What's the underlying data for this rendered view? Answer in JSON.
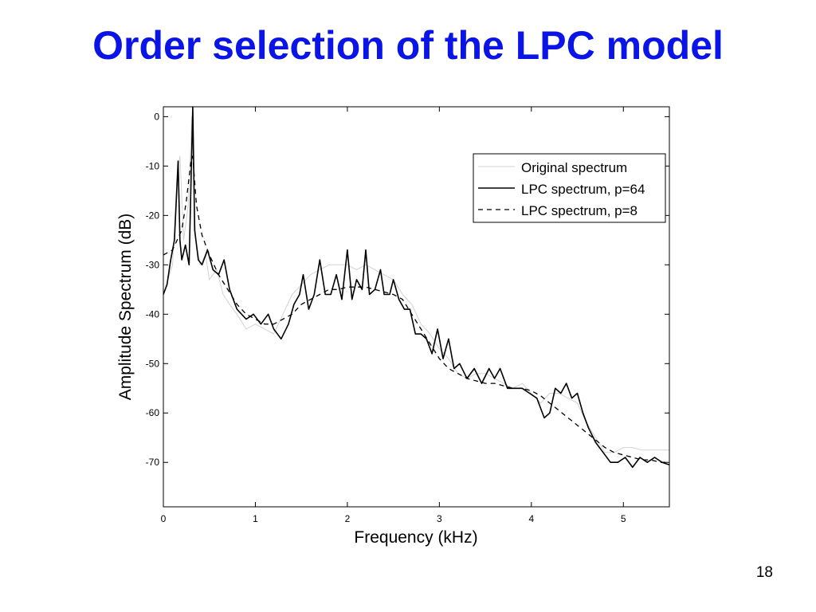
{
  "slide": {
    "title": "Order selection of the LPC model",
    "page_number": "18"
  },
  "chart_data": {
    "type": "line",
    "title": "",
    "xlabel": "Frequency (kHz)",
    "ylabel": "Amplitude Spectrum (dB)",
    "xlim": [
      0,
      5.5
    ],
    "ylim": [
      -79,
      2
    ],
    "xticks": [
      0,
      1,
      2,
      3,
      4,
      5
    ],
    "yticks": [
      0,
      -10,
      -20,
      -30,
      -40,
      -50,
      -60,
      -70
    ],
    "grid": false,
    "legend_position": "top-right",
    "series": [
      {
        "name": "Original spectrum",
        "color": "#d2d2d2",
        "style": "solid",
        "x": [
          0,
          0.05,
          0.1,
          0.15,
          0.18,
          0.22,
          0.27,
          0.31,
          0.35,
          0.4,
          0.46,
          0.5,
          0.58,
          0.65,
          0.72,
          0.8,
          0.9,
          1.0,
          1.1,
          1.2,
          1.3,
          1.4,
          1.5,
          1.6,
          1.7,
          1.8,
          1.9,
          2.0,
          2.1,
          2.2,
          2.3,
          2.4,
          2.5,
          2.6,
          2.7,
          2.8,
          2.9,
          3.0,
          3.1,
          3.2,
          3.3,
          3.4,
          3.5,
          3.6,
          3.7,
          3.8,
          3.9,
          4.0,
          4.1,
          4.2,
          4.3,
          4.4,
          4.5,
          4.6,
          4.7,
          4.8,
          4.9,
          5.0,
          5.1,
          5.2,
          5.3,
          5.4,
          5.5
        ],
        "y": [
          -36,
          -33,
          -30,
          -12,
          -8,
          -25,
          -18,
          0,
          -25,
          -30,
          -28,
          -33,
          -31,
          -36,
          -38,
          -40,
          -43,
          -42,
          -43,
          -44,
          -40,
          -36,
          -34,
          -32,
          -31,
          -30,
          -30,
          -30,
          -31,
          -30,
          -31,
          -32,
          -33,
          -36,
          -38,
          -42,
          -44,
          -47,
          -49,
          -52,
          -53,
          -52,
          -52,
          -53,
          -54,
          -55,
          -54,
          -56,
          -58,
          -56,
          -56,
          -57,
          -58,
          -62,
          -65,
          -68,
          -68,
          -67,
          -67,
          -67.5,
          -67.5,
          -67.5,
          -67.5
        ]
      },
      {
        "name": "LPC spectrum, p=64",
        "color": "#000000",
        "style": "solid",
        "x": [
          0,
          0.04,
          0.08,
          0.12,
          0.16,
          0.18,
          0.2,
          0.24,
          0.28,
          0.32,
          0.34,
          0.38,
          0.42,
          0.48,
          0.54,
          0.6,
          0.66,
          0.72,
          0.8,
          0.9,
          0.98,
          1.06,
          1.14,
          1.2,
          1.28,
          1.36,
          1.42,
          1.48,
          1.52,
          1.58,
          1.64,
          1.7,
          1.76,
          1.82,
          1.88,
          1.94,
          2.0,
          2.05,
          2.1,
          2.16,
          2.2,
          2.24,
          2.3,
          2.36,
          2.4,
          2.46,
          2.5,
          2.56,
          2.62,
          2.68,
          2.74,
          2.8,
          2.86,
          2.92,
          2.98,
          3.04,
          3.1,
          3.16,
          3.22,
          3.3,
          3.38,
          3.46,
          3.54,
          3.6,
          3.66,
          3.74,
          3.82,
          3.9,
          3.98,
          4.06,
          4.14,
          4.2,
          4.26,
          4.32,
          4.38,
          4.44,
          4.5,
          4.56,
          4.62,
          4.7,
          4.78,
          4.86,
          4.94,
          5.02,
          5.1,
          5.18,
          5.26,
          5.34,
          5.42,
          5.5
        ],
        "y": [
          -36,
          -34,
          -29,
          -25,
          -9,
          -25,
          -29,
          -26,
          -30,
          2,
          -23,
          -29,
          -30,
          -27,
          -31,
          -32,
          -29,
          -35,
          -39,
          -41,
          -40,
          -42,
          -40,
          -43,
          -45,
          -42,
          -38,
          -36,
          -32,
          -39,
          -36,
          -29,
          -36,
          -36,
          -32,
          -37,
          -27,
          -37,
          -33,
          -35,
          -27,
          -36,
          -35,
          -31,
          -36,
          -36,
          -33,
          -37,
          -39,
          -39,
          -44,
          -44,
          -45,
          -48,
          -43,
          -49,
          -45,
          -51,
          -50,
          -53,
          -51,
          -54,
          -51,
          -53,
          -51,
          -55,
          -55,
          -55,
          -56,
          -57,
          -61,
          -60,
          -55,
          -56,
          -54,
          -57,
          -56,
          -60,
          -63,
          -66,
          -68,
          -70,
          -70,
          -69,
          -71,
          -69,
          -70,
          -69,
          -70,
          -70.5
        ]
      },
      {
        "name": "LPC spectrum, p=8",
        "color": "#000000",
        "style": "dashed",
        "x": [
          0,
          0.1,
          0.2,
          0.25,
          0.3,
          0.32,
          0.36,
          0.42,
          0.5,
          0.6,
          0.7,
          0.8,
          0.9,
          1.0,
          1.1,
          1.2,
          1.3,
          1.4,
          1.5,
          1.6,
          1.7,
          1.8,
          1.9,
          2.0,
          2.1,
          2.2,
          2.3,
          2.4,
          2.5,
          2.6,
          2.7,
          2.8,
          2.9,
          3.0,
          3.1,
          3.2,
          3.3,
          3.4,
          3.5,
          3.6,
          3.7,
          3.8,
          3.9,
          4.0,
          4.1,
          4.2,
          4.3,
          4.4,
          4.5,
          4.6,
          4.7,
          4.8,
          4.9,
          5.0,
          5.1,
          5.2,
          5.3,
          5.4,
          5.5
        ],
        "y": [
          -28,
          -27,
          -23,
          -17,
          -9,
          -8,
          -18,
          -24,
          -28,
          -32,
          -35,
          -38,
          -40,
          -41,
          -42,
          -42,
          -41,
          -40,
          -38,
          -37,
          -36,
          -35,
          -35,
          -34.5,
          -34.5,
          -34.5,
          -35,
          -35.5,
          -36,
          -37,
          -40,
          -43,
          -46,
          -49,
          -51,
          -52,
          -53,
          -53.5,
          -54,
          -54,
          -54.5,
          -55,
          -55,
          -55.5,
          -56.5,
          -58,
          -59.5,
          -61,
          -62.5,
          -64,
          -65.5,
          -67,
          -68,
          -68.5,
          -69,
          -69.5,
          -69.5,
          -70,
          -70
        ]
      }
    ]
  }
}
